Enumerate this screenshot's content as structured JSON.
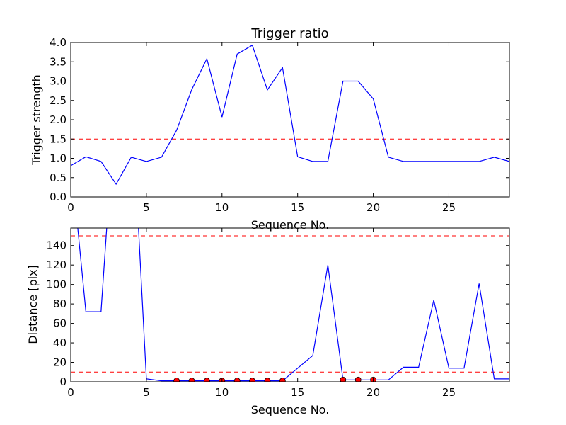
{
  "chart_data": [
    {
      "type": "line",
      "title": "Trigger ratio",
      "xlabel": "Sequence No.",
      "ylabel": "Trigger strength",
      "xlim": [
        0,
        29
      ],
      "ylim": [
        0,
        4
      ],
      "x_ticks": [
        0,
        5,
        10,
        15,
        20,
        25
      ],
      "y_ticks": [
        "0.0",
        "0.5",
        "1.0",
        "1.5",
        "2.0",
        "2.5",
        "3.0",
        "3.5",
        "4.0"
      ],
      "grid": false,
      "series": [
        {
          "x": [
            0,
            1,
            2,
            3,
            4,
            5,
            6,
            7,
            8,
            9,
            10,
            11,
            12,
            13,
            14,
            15,
            16,
            17,
            18,
            19,
            20,
            21,
            22,
            23,
            24,
            25,
            26,
            27,
            28,
            29
          ],
          "values": [
            0.81,
            1.04,
            0.92,
            0.33,
            1.03,
            0.92,
            1.03,
            1.73,
            2.78,
            3.58,
            2.07,
            3.7,
            3.93,
            2.77,
            3.35,
            1.04,
            0.92,
            0.92,
            3.0,
            3.0,
            2.54,
            1.03,
            0.92,
            0.92,
            0.92,
            0.92,
            0.92,
            0.92,
            1.03,
            0.92
          ],
          "color": "#0000ff",
          "style": "solid"
        }
      ],
      "hlines": [
        {
          "y": 1.5,
          "color": "#ff0000",
          "style": "dashed"
        }
      ]
    },
    {
      "type": "line",
      "title": "",
      "xlabel": "Sequence No.",
      "ylabel": "Distance [pix]",
      "xlim": [
        0,
        29
      ],
      "ylim": [
        0,
        158
      ],
      "x_ticks": [
        0,
        5,
        10,
        15,
        20,
        25
      ],
      "y_ticks": [
        0,
        20,
        40,
        60,
        80,
        100,
        120,
        140
      ],
      "grid": false,
      "series": [
        {
          "x": [
            0,
            1,
            2,
            3,
            4,
            5,
            6,
            7,
            8,
            9,
            10,
            11,
            12,
            13,
            14,
            15,
            16,
            17,
            18,
            19,
            20,
            21,
            22,
            23,
            24,
            25,
            26,
            27,
            28,
            29
          ],
          "values": [
            232,
            72,
            72,
            300,
            300,
            3,
            1,
            1,
            1,
            1,
            1,
            1,
            1,
            1,
            1,
            14,
            27,
            120,
            2,
            2,
            2,
            2,
            15,
            15,
            84,
            14,
            14,
            101,
            3,
            3
          ],
          "color": "#0000ff",
          "style": "solid"
        }
      ],
      "markers": {
        "x": [
          7,
          8,
          9,
          10,
          11,
          12,
          13,
          14,
          18,
          19,
          20
        ],
        "y": [
          1,
          1,
          1,
          1,
          1,
          1,
          1,
          1,
          2,
          2,
          2
        ],
        "color": "#ff0000"
      },
      "hlines": [
        {
          "y": 150,
          "color": "#ff0000",
          "style": "dashed"
        },
        {
          "y": 10,
          "color": "#ff0000",
          "style": "dashed"
        }
      ]
    }
  ]
}
